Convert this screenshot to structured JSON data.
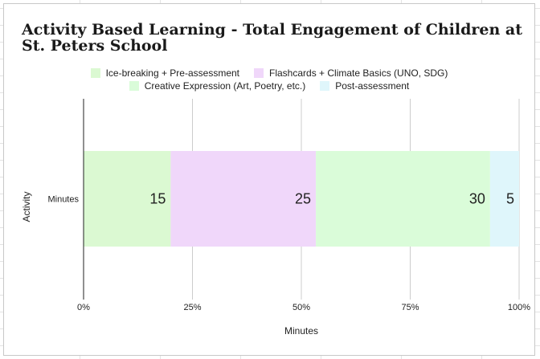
{
  "chart_data": {
    "type": "bar",
    "orientation": "horizontal",
    "stacked": "percent",
    "title": "Activity Based Learning - Total Engagement of Children at St. Peters School",
    "categories": [
      "Minutes"
    ],
    "series": [
      {
        "name": "Ice-breaking + Pre-assessment",
        "values": [
          15
        ],
        "color": "#dbf9d2"
      },
      {
        "name": "Flashcards + Climate Basics (UNO, SDG)",
        "values": [
          25
        ],
        "color": "#f0d7fa"
      },
      {
        "name": "Creative Expression (Art, Poetry, etc.)",
        "values": [
          30
        ],
        "color": "#dafcd9"
      },
      {
        "name": "Post-assessment",
        "values": [
          5
        ],
        "color": "#dff6fb"
      }
    ],
    "xlabel": "Minutes",
    "ylabel": "Activity",
    "xticks": [
      "0%",
      "25%",
      "50%",
      "75%",
      "100%"
    ],
    "xlim": [
      0,
      100
    ],
    "grid": true,
    "legend": "top"
  }
}
